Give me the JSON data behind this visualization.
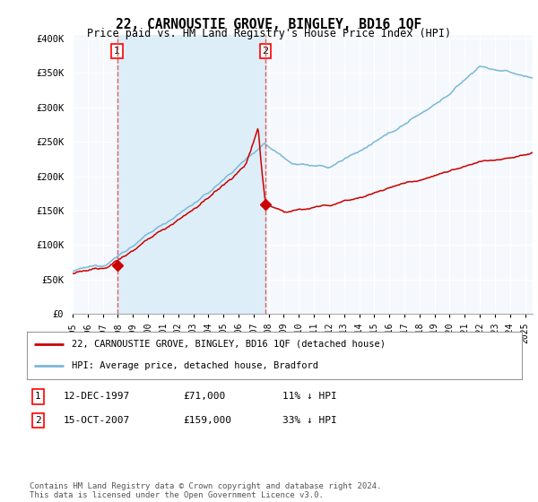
{
  "title": "22, CARNOUSTIE GROVE, BINGLEY, BD16 1QF",
  "subtitle": "Price paid vs. HM Land Registry's House Price Index (HPI)",
  "ylim": [
    0,
    400000
  ],
  "xlim_start": 1995.0,
  "xlim_end": 2025.5,
  "hpi_color": "#7ab8d8",
  "price_color": "#cc0000",
  "dashed_line_color": "#e06060",
  "shade_color": "#ddeef8",
  "purchase1_year": 1997.95,
  "purchase1_price": 71000,
  "purchase2_year": 2007.79,
  "purchase2_price": 159000,
  "legend_line1": "22, CARNOUSTIE GROVE, BINGLEY, BD16 1QF (detached house)",
  "legend_line2": "HPI: Average price, detached house, Bradford",
  "table_row1": [
    "1",
    "12-DEC-1997",
    "£71,000",
    "11% ↓ HPI"
  ],
  "table_row2": [
    "2",
    "15-OCT-2007",
    "£159,000",
    "33% ↓ HPI"
  ],
  "footnote": "Contains HM Land Registry data © Crown copyright and database right 2024.\nThis data is licensed under the Open Government Licence v3.0.",
  "background_color": "#ffffff",
  "plot_bg_color": "#f5f8fc"
}
